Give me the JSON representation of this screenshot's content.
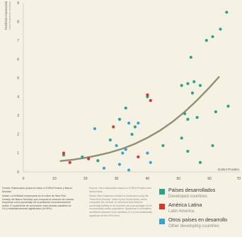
{
  "colors": {
    "developed": "#26a38a",
    "latin_america": "#d8342c",
    "developing": "#35a2d8",
    "trend": "#8f8f76",
    "axis_text": "#555555"
  },
  "chart_data": {
    "type": "scatter",
    "ylabel": "Fertilidad empresarial",
    "ylabel_en": "New business creation",
    "xlim": [
      0,
      70
    ],
    "ylim": [
      0,
      9
    ],
    "x_ticks": [
      "0",
      "10",
      "20",
      "30",
      "40",
      "50",
      "60",
      "70"
    ],
    "y_ticks": [
      "0",
      "1",
      "2",
      "3",
      "4",
      "5",
      "6",
      "7",
      "8",
      "9"
    ],
    "x_axis_caption": "ICSEA Prodem",
    "grid": false,
    "series": [
      {
        "key": "developed",
        "name": "Países desarrollados",
        "points": [
          [
            65.5,
            8.5
          ],
          [
            61,
            7.2
          ],
          [
            63.5,
            7.6
          ],
          [
            59,
            7.0
          ],
          [
            54,
            6.1
          ],
          [
            55,
            4.8
          ],
          [
            53,
            4.7
          ],
          [
            51,
            4.6
          ],
          [
            54.5,
            4.2
          ],
          [
            57,
            4.6
          ],
          [
            66,
            3.5
          ],
          [
            62,
            3.2
          ],
          [
            52,
            3.1
          ],
          [
            56,
            2.9
          ],
          [
            53,
            2.8
          ],
          [
            51,
            1.8
          ],
          [
            61,
            1.4
          ],
          [
            53,
            1.1
          ],
          [
            57,
            0.5
          ],
          [
            45,
            1.4
          ],
          [
            35,
            2.0
          ],
          [
            36,
            2.4
          ],
          [
            40,
            4.0
          ],
          [
            33,
            3.4
          ],
          [
            31,
            2.8
          ],
          [
            28,
            1.7
          ],
          [
            24,
            0.6
          ],
          [
            19,
            0.8
          ],
          [
            13,
            0.9
          ]
        ]
      },
      {
        "key": "latin_america",
        "name": "América Latina",
        "points": [
          [
            13,
            1.0
          ],
          [
            15,
            0.5
          ],
          [
            21,
            0.7
          ],
          [
            29,
            2.4
          ],
          [
            40,
            4.1
          ],
          [
            41,
            3.8
          ],
          [
            37,
            0.8
          ]
        ]
      },
      {
        "key": "developing",
        "name": "Otros países en desarrollo",
        "points": [
          [
            23,
            2.3
          ],
          [
            34,
            2.6
          ],
          [
            37,
            2.6
          ],
          [
            40,
            1.0
          ],
          [
            41,
            0.5
          ],
          [
            31,
            0.4
          ],
          [
            32,
            1.0
          ],
          [
            33,
            1.2
          ],
          [
            30,
            1.4
          ],
          [
            26,
            0.2
          ],
          [
            34,
            0.1
          ]
        ]
      }
    ],
    "trend_line": [
      [
        12,
        0.58
      ],
      [
        16,
        0.65
      ],
      [
        20,
        0.75
      ],
      [
        24,
        0.88
      ],
      [
        28,
        1.04
      ],
      [
        32,
        1.24
      ],
      [
        36,
        1.5
      ],
      [
        40,
        1.82
      ],
      [
        44,
        2.2
      ],
      [
        48,
        2.66
      ],
      [
        52,
        3.2
      ],
      [
        56,
        3.82
      ],
      [
        60,
        4.5
      ],
      [
        63,
        5.05
      ]
    ]
  },
  "footer": {
    "left_es": "Fuente: Elaboración propia en base a ICSEA Prodem y Banco Mundial",
    "left_note_es": "Notas: La fertilidad empresarial es el índice de New Firm Density del Banco Mundial, que computa la creación de nuevas empresas como porcentaje de la población económicamente activa. El coeficiente de correlación entre ambas variables es 0,6 y estadísticamente significativo (al 99%).",
    "mid_en": "Source: Own elaboration based on ICSEA Prodem and World Bank",
    "mid_note_en": "Notes: New business creation is measured using the \"New Firm Density\" index by the World Bank, which computes the number of new firms that limit the ownership liability to its founders as a percentage of the economically active population. Spearman's correlation coefficient between both variables is 0.6 and statistically significant at the 99% level."
  },
  "legend": [
    {
      "key": "developed",
      "es": "Países desarrollados",
      "en": "Developed countries"
    },
    {
      "key": "latin_america",
      "es": "América Latina",
      "en": "Latin America"
    },
    {
      "key": "developing",
      "es": "Otros países en desarrollo",
      "en": "Other developing countries"
    }
  ]
}
